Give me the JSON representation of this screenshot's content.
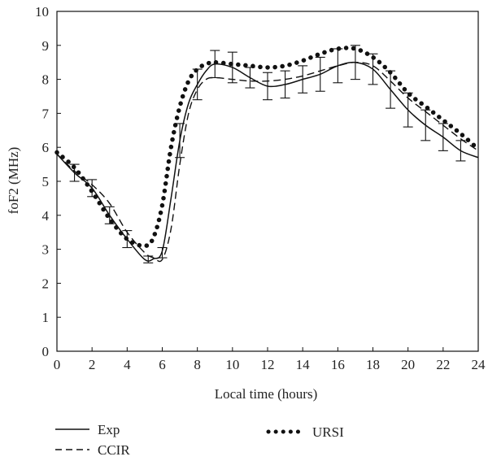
{
  "chart_data": {
    "type": "line",
    "xlabel": "Local time (hours)",
    "ylabel": "foF2 (MHz)",
    "xlim": [
      0,
      24
    ],
    "ylim": [
      0,
      10
    ],
    "x_ticks": [
      0,
      2,
      4,
      6,
      8,
      10,
      12,
      14,
      16,
      18,
      20,
      22,
      24
    ],
    "y_ticks": [
      0,
      1,
      2,
      3,
      4,
      5,
      6,
      7,
      8,
      9,
      10
    ],
    "grid": false,
    "legend_position": "bottom",
    "series": [
      {
        "name": "Exp",
        "style": "solid",
        "color": "#111111",
        "x": [
          0,
          1,
          2,
          3,
          4,
          5,
          5.5,
          6,
          6.5,
          7,
          7.5,
          8,
          8.5,
          9,
          10,
          11,
          12,
          13,
          14,
          15,
          16,
          17,
          18,
          19,
          20,
          21,
          22,
          23,
          24
        ],
        "y": [
          5.8,
          5.25,
          4.8,
          4.0,
          3.3,
          2.7,
          2.72,
          2.95,
          4.5,
          6.2,
          7.3,
          7.85,
          8.25,
          8.45,
          8.35,
          8.05,
          7.8,
          7.85,
          8.0,
          8.15,
          8.4,
          8.5,
          8.3,
          7.7,
          7.1,
          6.65,
          6.3,
          5.9,
          5.7
        ]
      },
      {
        "name": "CCIR",
        "style": "dashed",
        "color": "#111111",
        "x": [
          0,
          1,
          2,
          3,
          4,
          5,
          5.5,
          6,
          6.5,
          7,
          7.5,
          8,
          8.5,
          9,
          10,
          11,
          12,
          13,
          14,
          15,
          16,
          17,
          18,
          19,
          20,
          21,
          22,
          23,
          24
        ],
        "y": [
          5.8,
          5.3,
          4.9,
          4.35,
          3.5,
          2.9,
          2.75,
          2.7,
          3.6,
          5.5,
          7.0,
          7.7,
          8.0,
          8.05,
          8.0,
          7.95,
          7.95,
          8.0,
          8.1,
          8.25,
          8.4,
          8.5,
          8.4,
          7.95,
          7.45,
          7.05,
          6.65,
          6.25,
          5.9
        ]
      },
      {
        "name": "URSI",
        "style": "dotted",
        "color": "#111111",
        "x": [
          0,
          1,
          2,
          3,
          4,
          5,
          5.5,
          6,
          6.5,
          7,
          7.5,
          8,
          8.5,
          9,
          10,
          11,
          12,
          13,
          14,
          15,
          16,
          17,
          18,
          19,
          20,
          21,
          22,
          23,
          24
        ],
        "y": [
          5.85,
          5.4,
          4.7,
          3.9,
          3.3,
          3.1,
          3.35,
          4.3,
          6.0,
          7.2,
          7.95,
          8.3,
          8.45,
          8.5,
          8.45,
          8.4,
          8.35,
          8.4,
          8.55,
          8.75,
          8.9,
          8.9,
          8.65,
          8.2,
          7.6,
          7.2,
          6.8,
          6.4,
          5.95
        ]
      }
    ],
    "error_bars": {
      "series": "Exp",
      "x": [
        1,
        2,
        3,
        4,
        5.2,
        6,
        7,
        8,
        9,
        10,
        11,
        12,
        13,
        14,
        15,
        16,
        17,
        18,
        19,
        20,
        21,
        22,
        23
      ],
      "y": [
        5.25,
        4.8,
        4.0,
        3.3,
        2.7,
        2.9,
        6.2,
        7.85,
        8.45,
        8.35,
        8.05,
        7.8,
        7.85,
        8.0,
        8.15,
        8.4,
        8.5,
        8.3,
        7.7,
        7.1,
        6.65,
        6.3,
        5.9
      ],
      "err": [
        0.25,
        0.25,
        0.25,
        0.25,
        0.1,
        0.15,
        0.5,
        0.45,
        0.4,
        0.45,
        0.3,
        0.4,
        0.4,
        0.4,
        0.5,
        0.5,
        0.5,
        0.45,
        0.55,
        0.5,
        0.45,
        0.4,
        0.3
      ]
    }
  }
}
